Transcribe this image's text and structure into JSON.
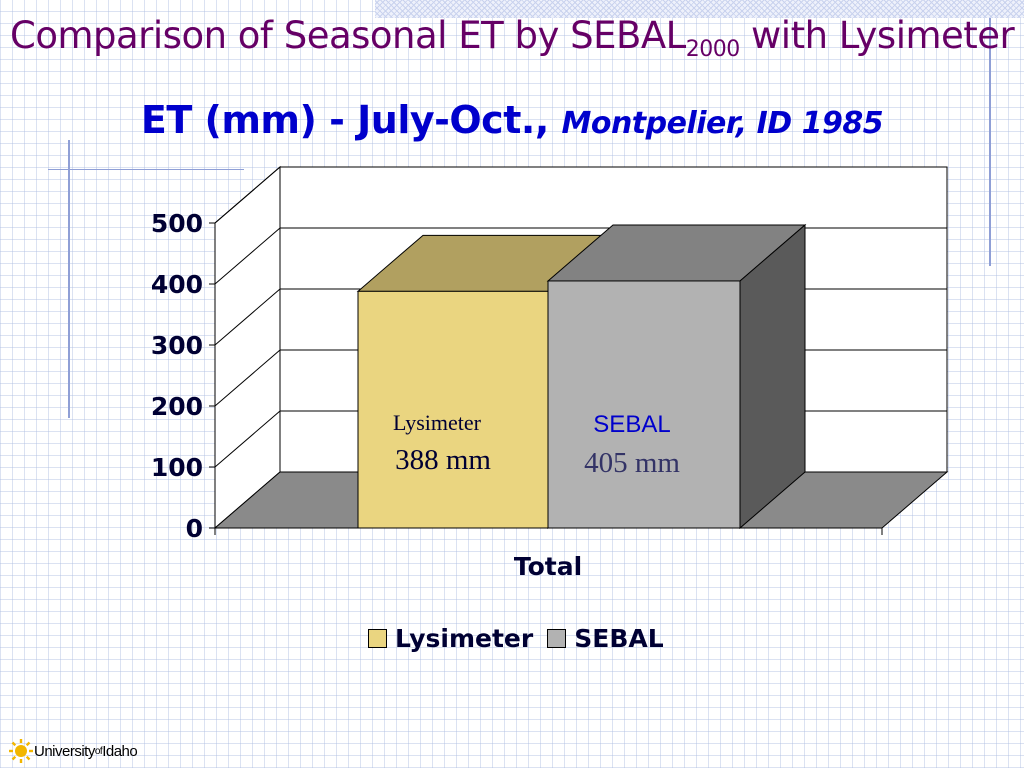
{
  "slide": {
    "title_main": "Comparison of Seasonal ET by SEBAL",
    "title_sub": "2000",
    "title_end": " with Lysimeter",
    "subtitle_main": "ET (mm) - July-Oct., ",
    "subtitle_place": "Montpelier, ID 1985"
  },
  "logo": {
    "part1": "University",
    "part2": "of",
    "part3": "Idaho",
    "icon": "sun-logo-icon"
  },
  "colors": {
    "title": "#660066",
    "subtitle": "#0000cc",
    "lysimeter": "#ead580",
    "sebal": "#b2b2b2"
  },
  "chart_data": {
    "type": "bar",
    "categories": [
      "Total"
    ],
    "series": [
      {
        "name": "Lysimeter",
        "values": [
          388
        ],
        "label_name": "Lysimeter",
        "label_value": "388 mm"
      },
      {
        "name": "SEBAL",
        "values": [
          405
        ],
        "label_name": "SEBAL",
        "label_value": "405 mm"
      }
    ],
    "ylim": [
      0,
      500
    ],
    "yticks": [
      "0",
      "100",
      "200",
      "300",
      "400",
      "500"
    ],
    "legend": "bottom",
    "grid": true
  }
}
